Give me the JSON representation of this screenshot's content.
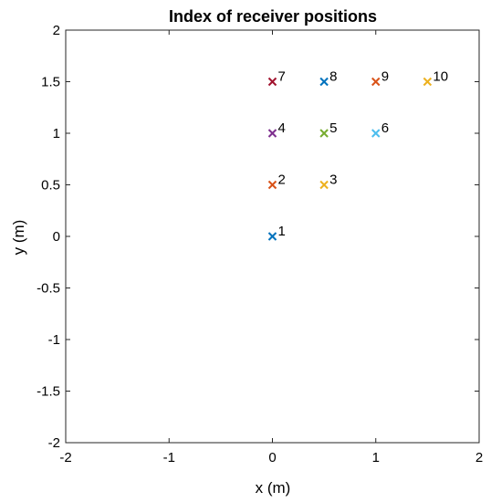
{
  "chart_data": {
    "type": "scatter",
    "title": "Index of receiver positions",
    "xlabel": "x (m)",
    "ylabel": "y (m)",
    "xlim": [
      -2,
      2
    ],
    "ylim": [
      -2,
      2
    ],
    "xticks": [
      -2,
      -1,
      0,
      1,
      2
    ],
    "yticks": [
      -2,
      -1.5,
      -1,
      -0.5,
      0,
      0.5,
      1,
      1.5,
      2
    ],
    "xtick_labels": [
      "-2",
      "-1",
      "0",
      "1",
      "2"
    ],
    "ytick_labels": [
      "-2",
      "-1.5",
      "-1",
      "-0.5",
      "0",
      "0.5",
      "1",
      "1.5",
      "2"
    ],
    "grid": false,
    "marker": "x",
    "points": [
      {
        "x": 0,
        "y": 0,
        "label": "1",
        "color": "#0072BD"
      },
      {
        "x": 0,
        "y": 0.5,
        "label": "2",
        "color": "#D95319"
      },
      {
        "x": 0.5,
        "y": 0.5,
        "label": "3",
        "color": "#EDB120"
      },
      {
        "x": 0,
        "y": 1,
        "label": "4",
        "color": "#7E2F8E"
      },
      {
        "x": 0.5,
        "y": 1,
        "label": "5",
        "color": "#77AC30"
      },
      {
        "x": 1,
        "y": 1,
        "label": "6",
        "color": "#4DBEEE"
      },
      {
        "x": 0,
        "y": 1.5,
        "label": "7",
        "color": "#A2142F"
      },
      {
        "x": 0.5,
        "y": 1.5,
        "label": "8",
        "color": "#0072BD"
      },
      {
        "x": 1,
        "y": 1.5,
        "label": "9",
        "color": "#D95319"
      },
      {
        "x": 1.5,
        "y": 1.5,
        "label": "10",
        "color": "#EDB120"
      }
    ]
  }
}
